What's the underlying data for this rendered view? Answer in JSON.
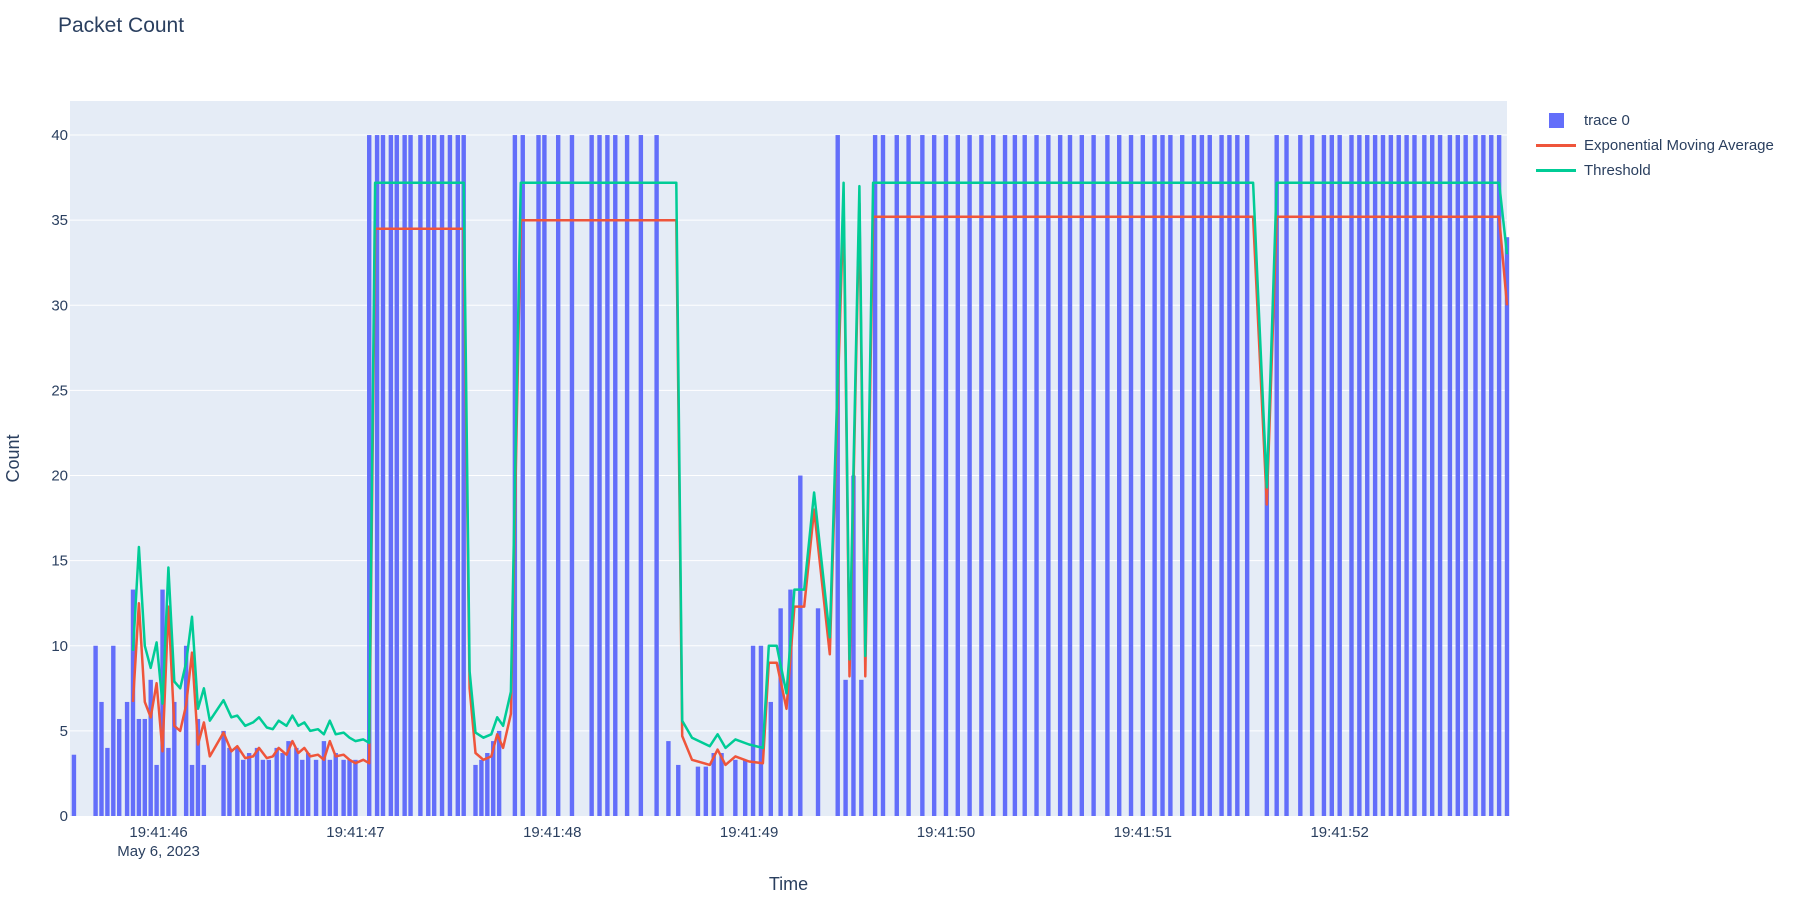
{
  "chart_data": {
    "type": "bar+line",
    "title": "Packet Count",
    "xlabel": "Time",
    "ylabel": "Count",
    "ylim": [
      0,
      42
    ],
    "yticks": [
      0,
      5,
      10,
      15,
      20,
      25,
      30,
      35,
      40
    ],
    "xrange_seconds": [
      45.55,
      52.85
    ],
    "xticks": [
      {
        "t": 46,
        "label": "19:41:46",
        "sublabel": "May 6, 2023"
      },
      {
        "t": 47,
        "label": "19:41:47",
        "sublabel": ""
      },
      {
        "t": 48,
        "label": "19:41:48",
        "sublabel": ""
      },
      {
        "t": 49,
        "label": "19:41:49",
        "sublabel": ""
      },
      {
        "t": 50,
        "label": "19:41:50",
        "sublabel": ""
      },
      {
        "t": 51,
        "label": "19:41:51",
        "sublabel": ""
      },
      {
        "t": 52,
        "label": "19:41:52",
        "sublabel": ""
      }
    ],
    "legend_position": "top-right outside",
    "grid": true,
    "colors": {
      "bar": "#636efa",
      "ema": "#ef553b",
      "threshold": "#00cc96",
      "plot_bg": "#e5ecf6",
      "grid": "#ffffff"
    },
    "series": [
      {
        "name": "trace 0",
        "kind": "bar",
        "points": [
          [
            45.57,
            3.6
          ],
          [
            45.68,
            10
          ],
          [
            45.71,
            6.7
          ],
          [
            45.74,
            4
          ],
          [
            45.77,
            10
          ],
          [
            45.8,
            5.7
          ],
          [
            45.84,
            6.7
          ],
          [
            45.87,
            13.3
          ],
          [
            45.9,
            5.7
          ],
          [
            45.93,
            5.7
          ],
          [
            45.96,
            8
          ],
          [
            45.99,
            3
          ],
          [
            46.02,
            13.3
          ],
          [
            46.05,
            4
          ],
          [
            46.08,
            6.7
          ],
          [
            46.14,
            10
          ],
          [
            46.17,
            3
          ],
          [
            46.2,
            5.7
          ],
          [
            46.23,
            3
          ],
          [
            46.33,
            5
          ],
          [
            46.36,
            4
          ],
          [
            46.4,
            4
          ],
          [
            46.43,
            3.3
          ],
          [
            46.46,
            3.7
          ],
          [
            46.5,
            4
          ],
          [
            46.53,
            3.3
          ],
          [
            46.56,
            3.3
          ],
          [
            46.6,
            4
          ],
          [
            46.63,
            3.7
          ],
          [
            46.66,
            4.4
          ],
          [
            46.7,
            4
          ],
          [
            46.73,
            3.3
          ],
          [
            46.76,
            3.7
          ],
          [
            46.8,
            3.3
          ],
          [
            46.84,
            4.4
          ],
          [
            46.87,
            3.3
          ],
          [
            46.9,
            3.7
          ],
          [
            46.94,
            3.3
          ],
          [
            46.97,
            3.3
          ],
          [
            47.0,
            3.3
          ],
          [
            47.07,
            40
          ],
          [
            47.11,
            40
          ],
          [
            47.14,
            40
          ],
          [
            47.18,
            40
          ],
          [
            47.21,
            40
          ],
          [
            47.25,
            40
          ],
          [
            47.28,
            40
          ],
          [
            47.33,
            40
          ],
          [
            47.37,
            40
          ],
          [
            47.4,
            40
          ],
          [
            47.44,
            40
          ],
          [
            47.48,
            40
          ],
          [
            47.52,
            40
          ],
          [
            47.55,
            40
          ],
          [
            47.61,
            3
          ],
          [
            47.64,
            3.3
          ],
          [
            47.67,
            3.7
          ],
          [
            47.7,
            4.4
          ],
          [
            47.73,
            5
          ],
          [
            47.81,
            40
          ],
          [
            47.85,
            40
          ],
          [
            47.93,
            40
          ],
          [
            47.96,
            40
          ],
          [
            48.03,
            40
          ],
          [
            48.1,
            40
          ],
          [
            48.2,
            40
          ],
          [
            48.24,
            40
          ],
          [
            48.28,
            40
          ],
          [
            48.32,
            40
          ],
          [
            48.38,
            40
          ],
          [
            48.45,
            40
          ],
          [
            48.53,
            40
          ],
          [
            48.59,
            4.4
          ],
          [
            48.64,
            3
          ],
          [
            48.74,
            2.9
          ],
          [
            48.78,
            2.9
          ],
          [
            48.82,
            3.7
          ],
          [
            48.86,
            3.7
          ],
          [
            48.93,
            3.3
          ],
          [
            48.98,
            3.3
          ],
          [
            49.02,
            10
          ],
          [
            49.06,
            10
          ],
          [
            49.11,
            6.7
          ],
          [
            49.16,
            12.2
          ],
          [
            49.21,
            13.3
          ],
          [
            49.26,
            20
          ],
          [
            49.35,
            12.2
          ],
          [
            49.45,
            40
          ],
          [
            49.49,
            8
          ],
          [
            49.53,
            20
          ],
          [
            49.57,
            8
          ],
          [
            49.64,
            40
          ],
          [
            49.68,
            40
          ],
          [
            49.75,
            40
          ],
          [
            49.81,
            40
          ],
          [
            49.88,
            40
          ],
          [
            49.94,
            40
          ],
          [
            50.0,
            40
          ],
          [
            50.06,
            40
          ],
          [
            50.12,
            40
          ],
          [
            50.18,
            40
          ],
          [
            50.24,
            40
          ],
          [
            50.3,
            40
          ],
          [
            50.35,
            40
          ],
          [
            50.4,
            40
          ],
          [
            50.46,
            40
          ],
          [
            50.52,
            40
          ],
          [
            50.58,
            40
          ],
          [
            50.63,
            40
          ],
          [
            50.69,
            40
          ],
          [
            50.75,
            40
          ],
          [
            50.82,
            40
          ],
          [
            50.88,
            40
          ],
          [
            50.94,
            40
          ],
          [
            51.0,
            40
          ],
          [
            51.06,
            40
          ],
          [
            51.1,
            40
          ],
          [
            51.14,
            40
          ],
          [
            51.2,
            40
          ],
          [
            51.26,
            40
          ],
          [
            51.3,
            40
          ],
          [
            51.34,
            40
          ],
          [
            51.4,
            40
          ],
          [
            51.44,
            40
          ],
          [
            51.48,
            40
          ],
          [
            51.53,
            40
          ],
          [
            51.63,
            20
          ],
          [
            51.68,
            40
          ],
          [
            51.73,
            40
          ],
          [
            51.8,
            40
          ],
          [
            51.86,
            40
          ],
          [
            51.92,
            40
          ],
          [
            51.96,
            40
          ],
          [
            52.0,
            40
          ],
          [
            52.06,
            40
          ],
          [
            52.1,
            40
          ],
          [
            52.14,
            40
          ],
          [
            52.18,
            40
          ],
          [
            52.22,
            40
          ],
          [
            52.26,
            40
          ],
          [
            52.3,
            40
          ],
          [
            52.34,
            40
          ],
          [
            52.38,
            40
          ],
          [
            52.43,
            40
          ],
          [
            52.47,
            40
          ],
          [
            52.51,
            40
          ],
          [
            52.56,
            40
          ],
          [
            52.6,
            40
          ],
          [
            52.64,
            40
          ],
          [
            52.69,
            40
          ],
          [
            52.73,
            40
          ],
          [
            52.77,
            40
          ],
          [
            52.81,
            40
          ],
          [
            52.85,
            34
          ]
        ]
      },
      {
        "name": "Exponential Moving Average",
        "kind": "line",
        "points": [
          [
            45.87,
            6.7
          ],
          [
            45.9,
            12.5
          ],
          [
            45.93,
            6.7
          ],
          [
            45.96,
            5.8
          ],
          [
            45.99,
            7.8
          ],
          [
            46.02,
            3.8
          ],
          [
            46.05,
            12.3
          ],
          [
            46.08,
            5.3
          ],
          [
            46.11,
            5
          ],
          [
            46.14,
            6.5
          ],
          [
            46.17,
            9.6
          ],
          [
            46.2,
            4.2
          ],
          [
            46.23,
            5.5
          ],
          [
            46.26,
            3.5
          ],
          [
            46.33,
            4.9
          ],
          [
            46.37,
            3.8
          ],
          [
            46.4,
            4.1
          ],
          [
            46.44,
            3.4
          ],
          [
            46.48,
            3.5
          ],
          [
            46.51,
            4
          ],
          [
            46.55,
            3.4
          ],
          [
            46.58,
            3.5
          ],
          [
            46.61,
            4
          ],
          [
            46.65,
            3.6
          ],
          [
            46.68,
            4.4
          ],
          [
            46.71,
            3.7
          ],
          [
            46.74,
            4
          ],
          [
            46.77,
            3.5
          ],
          [
            46.81,
            3.6
          ],
          [
            46.84,
            3.3
          ],
          [
            46.87,
            4.4
          ],
          [
            46.9,
            3.5
          ],
          [
            46.94,
            3.6
          ],
          [
            46.97,
            3.3
          ],
          [
            47.0,
            3.1
          ],
          [
            47.04,
            3.3
          ],
          [
            47.07,
            3.1
          ],
          [
            47.1,
            34.5
          ],
          [
            47.55,
            34.5
          ],
          [
            47.58,
            7.5
          ],
          [
            47.61,
            3.7
          ],
          [
            47.65,
            3.3
          ],
          [
            47.69,
            3.5
          ],
          [
            47.72,
            4.8
          ],
          [
            47.75,
            4
          ],
          [
            47.79,
            6
          ],
          [
            47.84,
            35
          ],
          [
            48.63,
            35
          ],
          [
            48.66,
            4.7
          ],
          [
            48.71,
            3.3
          ],
          [
            48.8,
            3
          ],
          [
            48.84,
            3.9
          ],
          [
            48.88,
            3
          ],
          [
            48.93,
            3.5
          ],
          [
            49.0,
            3.2
          ],
          [
            49.07,
            3.1
          ],
          [
            49.1,
            9
          ],
          [
            49.14,
            9
          ],
          [
            49.19,
            6.3
          ],
          [
            49.23,
            12.3
          ],
          [
            49.28,
            12.3
          ],
          [
            49.33,
            18
          ],
          [
            49.41,
            9.5
          ],
          [
            49.48,
            36
          ],
          [
            49.51,
            8.2
          ],
          [
            49.56,
            36
          ],
          [
            49.59,
            8.2
          ],
          [
            49.63,
            35.2
          ],
          [
            51.56,
            35.2
          ],
          [
            51.63,
            18.3
          ],
          [
            51.68,
            35.2
          ],
          [
            52.81,
            35.2
          ],
          [
            52.85,
            30
          ]
        ]
      },
      {
        "name": "Threshold",
        "kind": "line",
        "points": [
          [
            45.87,
            9.7
          ],
          [
            45.9,
            15.8
          ],
          [
            45.93,
            10
          ],
          [
            45.96,
            8.7
          ],
          [
            45.99,
            10.2
          ],
          [
            46.02,
            6.6
          ],
          [
            46.05,
            14.6
          ],
          [
            46.08,
            7.9
          ],
          [
            46.11,
            7.5
          ],
          [
            46.14,
            9
          ],
          [
            46.17,
            11.7
          ],
          [
            46.2,
            6.3
          ],
          [
            46.23,
            7.5
          ],
          [
            46.26,
            5.6
          ],
          [
            46.33,
            6.8
          ],
          [
            46.37,
            5.8
          ],
          [
            46.4,
            5.9
          ],
          [
            46.44,
            5.3
          ],
          [
            46.48,
            5.5
          ],
          [
            46.51,
            5.8
          ],
          [
            46.55,
            5.2
          ],
          [
            46.58,
            5.1
          ],
          [
            46.61,
            5.6
          ],
          [
            46.65,
            5.3
          ],
          [
            46.68,
            5.9
          ],
          [
            46.71,
            5.3
          ],
          [
            46.74,
            5.5
          ],
          [
            46.77,
            5
          ],
          [
            46.81,
            5.1
          ],
          [
            46.84,
            4.8
          ],
          [
            46.87,
            5.6
          ],
          [
            46.9,
            4.8
          ],
          [
            46.94,
            4.9
          ],
          [
            46.97,
            4.6
          ],
          [
            47.0,
            4.4
          ],
          [
            47.04,
            4.5
          ],
          [
            47.07,
            4.3
          ],
          [
            47.1,
            37.2
          ],
          [
            47.55,
            37.2
          ],
          [
            47.58,
            8.5
          ],
          [
            47.61,
            4.9
          ],
          [
            47.65,
            4.6
          ],
          [
            47.69,
            4.8
          ],
          [
            47.72,
            5.8
          ],
          [
            47.75,
            5.3
          ],
          [
            47.79,
            7.3
          ],
          [
            47.84,
            37.2
          ],
          [
            48.63,
            37.2
          ],
          [
            48.66,
            5.6
          ],
          [
            48.71,
            4.6
          ],
          [
            48.8,
            4.1
          ],
          [
            48.84,
            4.8
          ],
          [
            48.88,
            4
          ],
          [
            48.93,
            4.5
          ],
          [
            49.0,
            4.2
          ],
          [
            49.07,
            4
          ],
          [
            49.1,
            10
          ],
          [
            49.14,
            10
          ],
          [
            49.19,
            7.2
          ],
          [
            49.23,
            13.3
          ],
          [
            49.28,
            13.3
          ],
          [
            49.33,
            19
          ],
          [
            49.41,
            10.5
          ],
          [
            49.48,
            37.2
          ],
          [
            49.51,
            9.2
          ],
          [
            49.56,
            37
          ],
          [
            49.59,
            9.4
          ],
          [
            49.63,
            37.2
          ],
          [
            51.56,
            37.2
          ],
          [
            51.63,
            19.3
          ],
          [
            51.68,
            37.2
          ],
          [
            52.81,
            37.2
          ],
          [
            52.85,
            33
          ]
        ]
      }
    ]
  }
}
